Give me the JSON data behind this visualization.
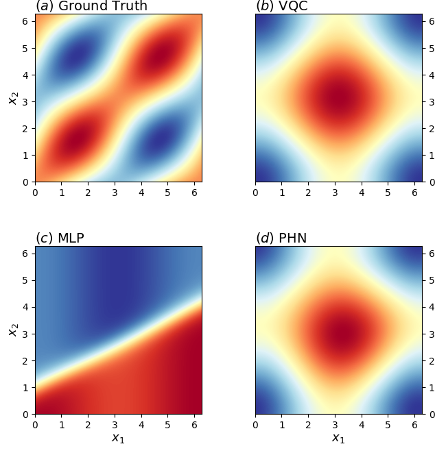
{
  "cmap": "RdYlBu_r",
  "ticks": [
    0,
    1,
    2,
    3,
    4,
    5,
    6
  ],
  "n_points": 300,
  "figsize": [
    6.34,
    6.64
  ],
  "dpi": 100,
  "title_fontsize": 14,
  "label_fontsize": 13,
  "tick_fontsize": 10
}
